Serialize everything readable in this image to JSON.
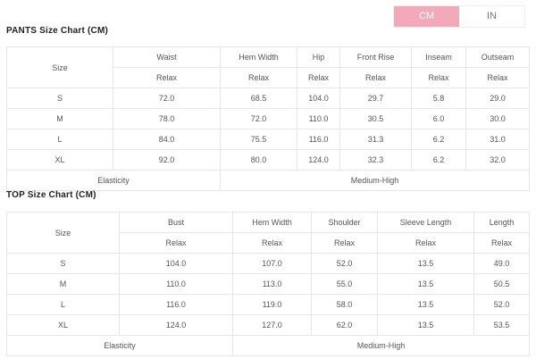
{
  "unit_toggle": {
    "cm": "CM",
    "in": "IN",
    "active": "CM",
    "active_color": "#f4a9bb"
  },
  "pants": {
    "title": "PANTS Size Chart (CM)",
    "size_label": "Size",
    "columns": [
      "Waist",
      "Hem Width",
      "Hip",
      "Front Rise",
      "Inseam",
      "Outseam"
    ],
    "sub": "Relax",
    "rows": [
      [
        "S",
        "72.0",
        "68.5",
        "104.0",
        "29.7",
        "5.8",
        "29.0"
      ],
      [
        "M",
        "78.0",
        "72.0",
        "110.0",
        "30.5",
        "6.0",
        "30.0"
      ],
      [
        "L",
        "84.0",
        "75.5",
        "116.0",
        "31.3",
        "6.2",
        "31.0"
      ],
      [
        "XL",
        "92.0",
        "80.0",
        "124.0",
        "32.3",
        "6.2",
        "32.0"
      ]
    ],
    "elasticity_label": "Elasticity",
    "elasticity_value": "Medium-High"
  },
  "top": {
    "title": "TOP Size Chart (CM)",
    "size_label": "Size",
    "columns": [
      "Bust",
      "Hem Width",
      "Shoulder",
      "Sleeve Length",
      "Length"
    ],
    "sub": "Relax",
    "rows": [
      [
        "S",
        "104.0",
        "107.0",
        "52.0",
        "13.5",
        "49.0"
      ],
      [
        "M",
        "110.0",
        "113.0",
        "55.0",
        "13.5",
        "50.5"
      ],
      [
        "L",
        "116.0",
        "119.0",
        "58.0",
        "13.5",
        "52.0"
      ],
      [
        "XL",
        "124.0",
        "127.0",
        "62.0",
        "13.5",
        "53.5"
      ]
    ],
    "elasticity_label": "Elasticity",
    "elasticity_value": "Medium-High"
  }
}
